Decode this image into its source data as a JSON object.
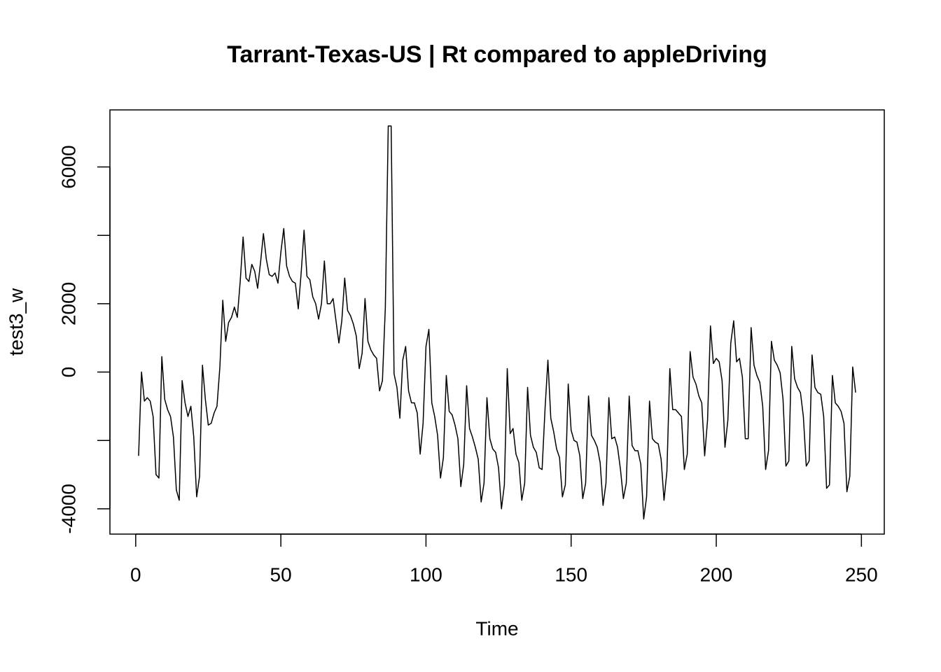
{
  "chart_data": {
    "type": "line",
    "title": "Tarrant-Texas-US | Rt compared to appleDriving",
    "xlabel": "Time",
    "ylabel": "test3_w",
    "x": [
      1,
      2,
      3,
      4,
      5,
      6,
      7,
      8,
      9,
      10,
      11,
      12,
      13,
      14,
      15,
      16,
      17,
      18,
      19,
      20,
      21,
      22,
      23,
      24,
      25,
      26,
      27,
      28,
      29,
      30,
      31,
      32,
      33,
      34,
      35,
      36,
      37,
      38,
      39,
      40,
      41,
      42,
      43,
      44,
      45,
      46,
      47,
      48,
      49,
      50,
      51,
      52,
      53,
      54,
      55,
      56,
      57,
      58,
      59,
      60,
      61,
      62,
      63,
      64,
      65,
      66,
      67,
      68,
      69,
      70,
      71,
      72,
      73,
      74,
      75,
      76,
      77,
      78,
      79,
      80,
      81,
      82,
      83,
      84,
      85,
      86,
      87,
      88,
      89,
      90,
      91,
      92,
      93,
      94,
      95,
      96,
      97,
      98,
      99,
      100,
      101,
      102,
      103,
      104,
      105,
      106,
      107,
      108,
      109,
      110,
      111,
      112,
      113,
      114,
      115,
      116,
      117,
      118,
      119,
      120,
      121,
      122,
      123,
      124,
      125,
      126,
      127,
      128,
      129,
      130,
      131,
      132,
      133,
      134,
      135,
      136,
      137,
      138,
      139,
      140,
      141,
      142,
      143,
      144,
      145,
      146,
      147,
      148,
      149,
      150,
      151,
      152,
      153,
      154,
      155,
      156,
      157,
      158,
      159,
      160,
      161,
      162,
      163,
      164,
      165,
      166,
      167,
      168,
      169,
      170,
      171,
      172,
      173,
      174,
      175,
      176,
      177,
      178,
      179,
      180,
      181,
      182,
      183,
      184,
      185,
      186,
      187,
      188,
      189,
      190,
      191,
      192,
      193,
      194,
      195,
      196,
      197,
      198,
      199,
      200,
      201,
      202,
      203,
      204,
      205,
      206,
      207,
      208,
      209,
      210,
      211,
      212,
      213,
      214,
      215,
      216,
      217,
      218,
      219,
      220,
      221,
      222,
      223,
      224,
      225,
      226,
      227,
      228,
      229,
      230,
      231,
      232,
      233,
      234,
      235,
      236,
      237,
      238,
      239,
      240,
      241,
      242,
      243,
      244,
      245,
      246,
      247,
      248
    ],
    "series": [
      {
        "color": "#000000",
        "values": [
          -2450,
          0,
          -850,
          -750,
          -850,
          -1300,
          -3000,
          -3100,
          450,
          -800,
          -1100,
          -1300,
          -1900,
          -3450,
          -3750,
          -250,
          -900,
          -1300,
          -1000,
          -1900,
          -3650,
          -3050,
          200,
          -800,
          -1550,
          -1500,
          -1200,
          -1000,
          150,
          2100,
          900,
          1450,
          1600,
          1900,
          1600,
          2650,
          3950,
          2750,
          2650,
          3150,
          2950,
          2450,
          3200,
          4050,
          3300,
          2850,
          2800,
          2900,
          2600,
          3500,
          4200,
          3100,
          2800,
          2650,
          2600,
          1850,
          2900,
          4150,
          2800,
          2700,
          2200,
          2000,
          1550,
          2000,
          3250,
          2000,
          2000,
          2150,
          1500,
          850,
          1500,
          2750,
          1800,
          1650,
          1400,
          1050,
          100,
          550,
          2150,
          900,
          650,
          500,
          400,
          -550,
          -250,
          1900,
          7200,
          7200,
          -50,
          -450,
          -1350,
          350,
          750,
          -550,
          -900,
          -900,
          -1200,
          -2400,
          -1500,
          750,
          1250,
          -900,
          -1300,
          -1850,
          -3100,
          -2500,
          -100,
          -1150,
          -1250,
          -1550,
          -1950,
          -3350,
          -2700,
          -400,
          -1650,
          -1900,
          -2200,
          -2550,
          -3800,
          -3250,
          -750,
          -1950,
          -2250,
          -2350,
          -2800,
          -4000,
          -3300,
          100,
          -1800,
          -1650,
          -2400,
          -2650,
          -3750,
          -3250,
          -450,
          -1850,
          -2200,
          -2350,
          -2800,
          -2850,
          -1100,
          350,
          -1350,
          -1750,
          -2250,
          -2500,
          -3650,
          -3300,
          -350,
          -1700,
          -2000,
          -2050,
          -2450,
          -3700,
          -3250,
          -700,
          -1850,
          -2000,
          -2200,
          -2650,
          -3900,
          -3250,
          -750,
          -1950,
          -1900,
          -2200,
          -2850,
          -3700,
          -3250,
          -700,
          -2150,
          -2300,
          -2300,
          -2700,
          -4300,
          -3650,
          -850,
          -1950,
          -2050,
          -2100,
          -2550,
          -3750,
          -2900,
          100,
          -1100,
          -1100,
          -1200,
          -1300,
          -2850,
          -2400,
          600,
          -150,
          -350,
          -700,
          -900,
          -2450,
          -1400,
          1350,
          250,
          400,
          300,
          -250,
          -2200,
          -1400,
          850,
          1500,
          300,
          400,
          -150,
          -1950,
          -1950,
          1300,
          200,
          -100,
          -300,
          -1000,
          -2850,
          -2300,
          900,
          350,
          200,
          -20,
          -800,
          -2750,
          -2600,
          750,
          -200,
          -450,
          -600,
          -1300,
          -2750,
          -2600,
          500,
          -450,
          -600,
          -650,
          -1300,
          -3400,
          -3300,
          -100,
          -900,
          -1000,
          -1150,
          -1500,
          -3500,
          -3050,
          150,
          -600
        ]
      }
    ],
    "xlim": [
      -8.88,
      257.88
    ],
    "ylim": [
      -4740,
      7670
    ],
    "xticks": [
      0,
      50,
      100,
      150,
      200,
      250
    ],
    "yticks": [
      -4000,
      {
        "value": -2000,
        "label": null
      },
      0,
      2000,
      {
        "value": 4000,
        "label": null
      },
      6000
    ]
  }
}
